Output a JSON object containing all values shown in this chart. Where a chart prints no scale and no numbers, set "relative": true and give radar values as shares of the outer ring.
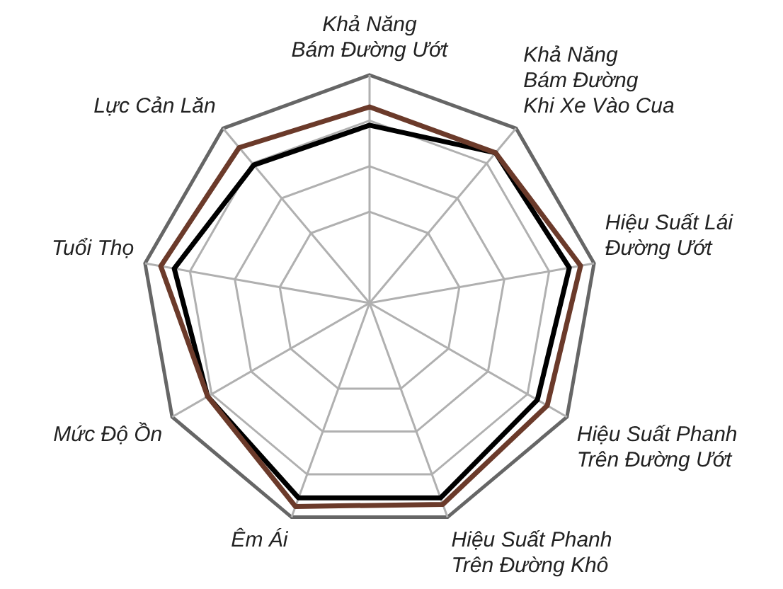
{
  "chart_data": {
    "type": "radar",
    "relative": true,
    "grid": true,
    "marker": "none",
    "line_style": "solid",
    "categories": [
      "Khả Năng\nBám Đường Ướt",
      "Khả Năng\nBám Đường\nKhi Xe Vào Cua",
      "Hiệu Suất Lái\nĐường Ướt",
      "Hiệu Suất Phanh\nTrên Đường Ướt",
      "Hiệu Suất Phanh\nTrên Đường Khô",
      "Êm Ái",
      "Mức Độ Ồn",
      "Tuổi Thọ",
      "Lực Cản Lăn"
    ],
    "series": [
      {
        "color": "#6b3a2a",
        "values": [
          0.86,
          0.86,
          0.94,
          0.9,
          0.94,
          0.95,
          0.82,
          0.93,
          0.89
        ]
      },
      {
        "color": "#000000",
        "values": [
          0.78,
          0.86,
          0.89,
          0.85,
          0.91,
          0.91,
          0.82,
          0.87,
          0.79
        ]
      }
    ]
  }
}
